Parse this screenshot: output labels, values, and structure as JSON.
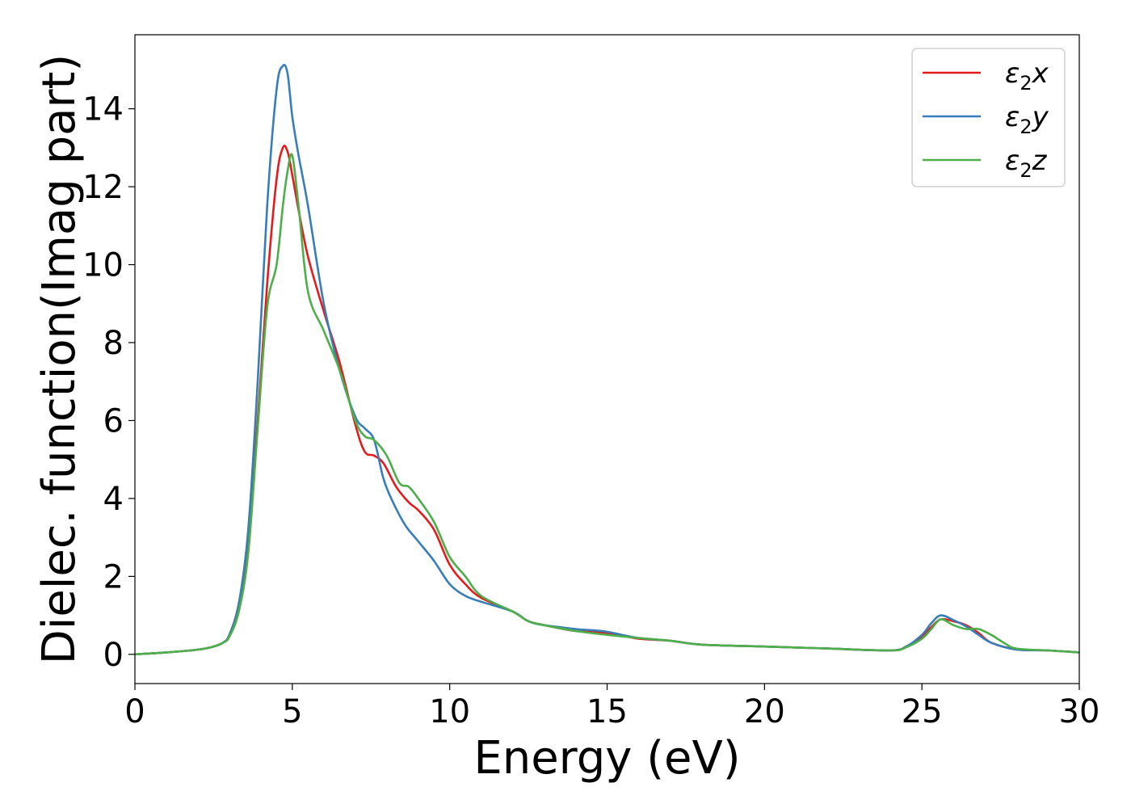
{
  "chart_data": {
    "type": "line",
    "title": "",
    "xlabel": "Energy (eV)",
    "ylabel": "Dielec. function(Imag part)",
    "xlim": [
      0,
      30
    ],
    "ylim": [
      -0.75,
      15.9
    ],
    "xticks": [
      "0",
      "5",
      "10",
      "15",
      "20",
      "25",
      "30"
    ],
    "yticks": [
      "0",
      "2",
      "4",
      "6",
      "8",
      "10",
      "12",
      "14"
    ],
    "grid": false,
    "legend_position": "top-right",
    "series": [
      {
        "name": "ε₂x",
        "legend_base": "ε",
        "legend_sub": "2",
        "legend_var": "x",
        "color": "#e41a1c",
        "points": [
          [
            0,
            0
          ],
          [
            1,
            0.05
          ],
          [
            2,
            0.12
          ],
          [
            2.5,
            0.2
          ],
          [
            2.8,
            0.3
          ],
          [
            3.0,
            0.5
          ],
          [
            3.3,
            1.3
          ],
          [
            3.6,
            3.0
          ],
          [
            3.9,
            6.0
          ],
          [
            4.2,
            9.5
          ],
          [
            4.5,
            12.2
          ],
          [
            4.7,
            13.0
          ],
          [
            4.85,
            12.9
          ],
          [
            5.0,
            12.3
          ],
          [
            5.2,
            11.4
          ],
          [
            5.5,
            10.2
          ],
          [
            6.0,
            8.8
          ],
          [
            6.5,
            7.5
          ],
          [
            7.0,
            5.9
          ],
          [
            7.3,
            5.2
          ],
          [
            7.6,
            5.1
          ],
          [
            7.9,
            4.9
          ],
          [
            8.3,
            4.3
          ],
          [
            8.7,
            3.9
          ],
          [
            9.0,
            3.7
          ],
          [
            9.5,
            3.2
          ],
          [
            10.0,
            2.3
          ],
          [
            10.5,
            1.8
          ],
          [
            11.0,
            1.45
          ],
          [
            12.0,
            1.1
          ],
          [
            12.5,
            0.85
          ],
          [
            13.0,
            0.75
          ],
          [
            14.0,
            0.6
          ],
          [
            15.0,
            0.55
          ],
          [
            16.0,
            0.4
          ],
          [
            17.0,
            0.35
          ],
          [
            18.0,
            0.25
          ],
          [
            20.0,
            0.2
          ],
          [
            22.0,
            0.15
          ],
          [
            24.0,
            0.1
          ],
          [
            24.5,
            0.2
          ],
          [
            25.0,
            0.45
          ],
          [
            25.3,
            0.7
          ],
          [
            25.6,
            0.9
          ],
          [
            26.0,
            0.85
          ],
          [
            26.4,
            0.75
          ],
          [
            26.8,
            0.55
          ],
          [
            27.2,
            0.3
          ],
          [
            28.0,
            0.13
          ],
          [
            29.0,
            0.1
          ],
          [
            30.0,
            0.05
          ]
        ]
      },
      {
        "name": "ε₂y",
        "legend_base": "ε",
        "legend_sub": "2",
        "legend_var": "y",
        "color": "#377eb8",
        "points": [
          [
            0,
            0
          ],
          [
            1,
            0.05
          ],
          [
            2,
            0.12
          ],
          [
            2.5,
            0.2
          ],
          [
            2.8,
            0.3
          ],
          [
            3.0,
            0.5
          ],
          [
            3.3,
            1.3
          ],
          [
            3.6,
            3.2
          ],
          [
            3.9,
            7.0
          ],
          [
            4.2,
            11.5
          ],
          [
            4.5,
            14.5
          ],
          [
            4.7,
            15.1
          ],
          [
            4.85,
            14.9
          ],
          [
            5.0,
            13.8
          ],
          [
            5.2,
            12.8
          ],
          [
            5.5,
            11.5
          ],
          [
            6.0,
            9.0
          ],
          [
            6.5,
            7.3
          ],
          [
            7.0,
            6.1
          ],
          [
            7.3,
            5.8
          ],
          [
            7.6,
            5.5
          ],
          [
            7.9,
            4.5
          ],
          [
            8.2,
            3.9
          ],
          [
            8.6,
            3.3
          ],
          [
            9.0,
            2.9
          ],
          [
            9.5,
            2.4
          ],
          [
            10.0,
            1.8
          ],
          [
            10.5,
            1.5
          ],
          [
            11.0,
            1.35
          ],
          [
            12.0,
            1.1
          ],
          [
            12.5,
            0.85
          ],
          [
            13.0,
            0.75
          ],
          [
            14.0,
            0.65
          ],
          [
            14.5,
            0.62
          ],
          [
            15.0,
            0.58
          ],
          [
            16.0,
            0.42
          ],
          [
            17.0,
            0.35
          ],
          [
            18.0,
            0.25
          ],
          [
            20.0,
            0.2
          ],
          [
            22.0,
            0.15
          ],
          [
            24.0,
            0.1
          ],
          [
            24.5,
            0.2
          ],
          [
            25.0,
            0.5
          ],
          [
            25.3,
            0.8
          ],
          [
            25.6,
            1.0
          ],
          [
            26.0,
            0.88
          ],
          [
            26.4,
            0.72
          ],
          [
            26.8,
            0.5
          ],
          [
            27.2,
            0.3
          ],
          [
            28.0,
            0.12
          ],
          [
            29.0,
            0.1
          ],
          [
            30.0,
            0.05
          ]
        ]
      },
      {
        "name": "ε₂z",
        "legend_base": "ε",
        "legend_sub": "2",
        "legend_var": "z",
        "color": "#4daf4a",
        "points": [
          [
            0,
            0
          ],
          [
            1,
            0.05
          ],
          [
            2,
            0.12
          ],
          [
            2.5,
            0.2
          ],
          [
            2.8,
            0.3
          ],
          [
            3.0,
            0.45
          ],
          [
            3.3,
            1.1
          ],
          [
            3.6,
            2.6
          ],
          [
            3.9,
            5.8
          ],
          [
            4.2,
            8.9
          ],
          [
            4.5,
            10.0
          ],
          [
            4.7,
            11.5
          ],
          [
            4.85,
            12.4
          ],
          [
            5.0,
            12.8
          ],
          [
            5.2,
            11.5
          ],
          [
            5.5,
            9.3
          ],
          [
            6.0,
            8.3
          ],
          [
            6.5,
            7.3
          ],
          [
            7.0,
            6.0
          ],
          [
            7.3,
            5.6
          ],
          [
            7.6,
            5.5
          ],
          [
            8.0,
            5.1
          ],
          [
            8.4,
            4.4
          ],
          [
            8.7,
            4.3
          ],
          [
            9.0,
            4.0
          ],
          [
            9.5,
            3.4
          ],
          [
            10.0,
            2.5
          ],
          [
            10.5,
            2.0
          ],
          [
            11.0,
            1.5
          ],
          [
            12.0,
            1.1
          ],
          [
            12.5,
            0.85
          ],
          [
            13.0,
            0.75
          ],
          [
            14.0,
            0.6
          ],
          [
            15.0,
            0.5
          ],
          [
            16.0,
            0.42
          ],
          [
            17.0,
            0.35
          ],
          [
            18.0,
            0.25
          ],
          [
            20.0,
            0.2
          ],
          [
            22.0,
            0.15
          ],
          [
            24.0,
            0.1
          ],
          [
            24.5,
            0.18
          ],
          [
            25.0,
            0.4
          ],
          [
            25.3,
            0.65
          ],
          [
            25.6,
            0.9
          ],
          [
            26.0,
            0.75
          ],
          [
            26.4,
            0.65
          ],
          [
            26.8,
            0.65
          ],
          [
            27.2,
            0.5
          ],
          [
            27.6,
            0.3
          ],
          [
            28.0,
            0.15
          ],
          [
            29.0,
            0.1
          ],
          [
            30.0,
            0.05
          ]
        ]
      }
    ]
  }
}
